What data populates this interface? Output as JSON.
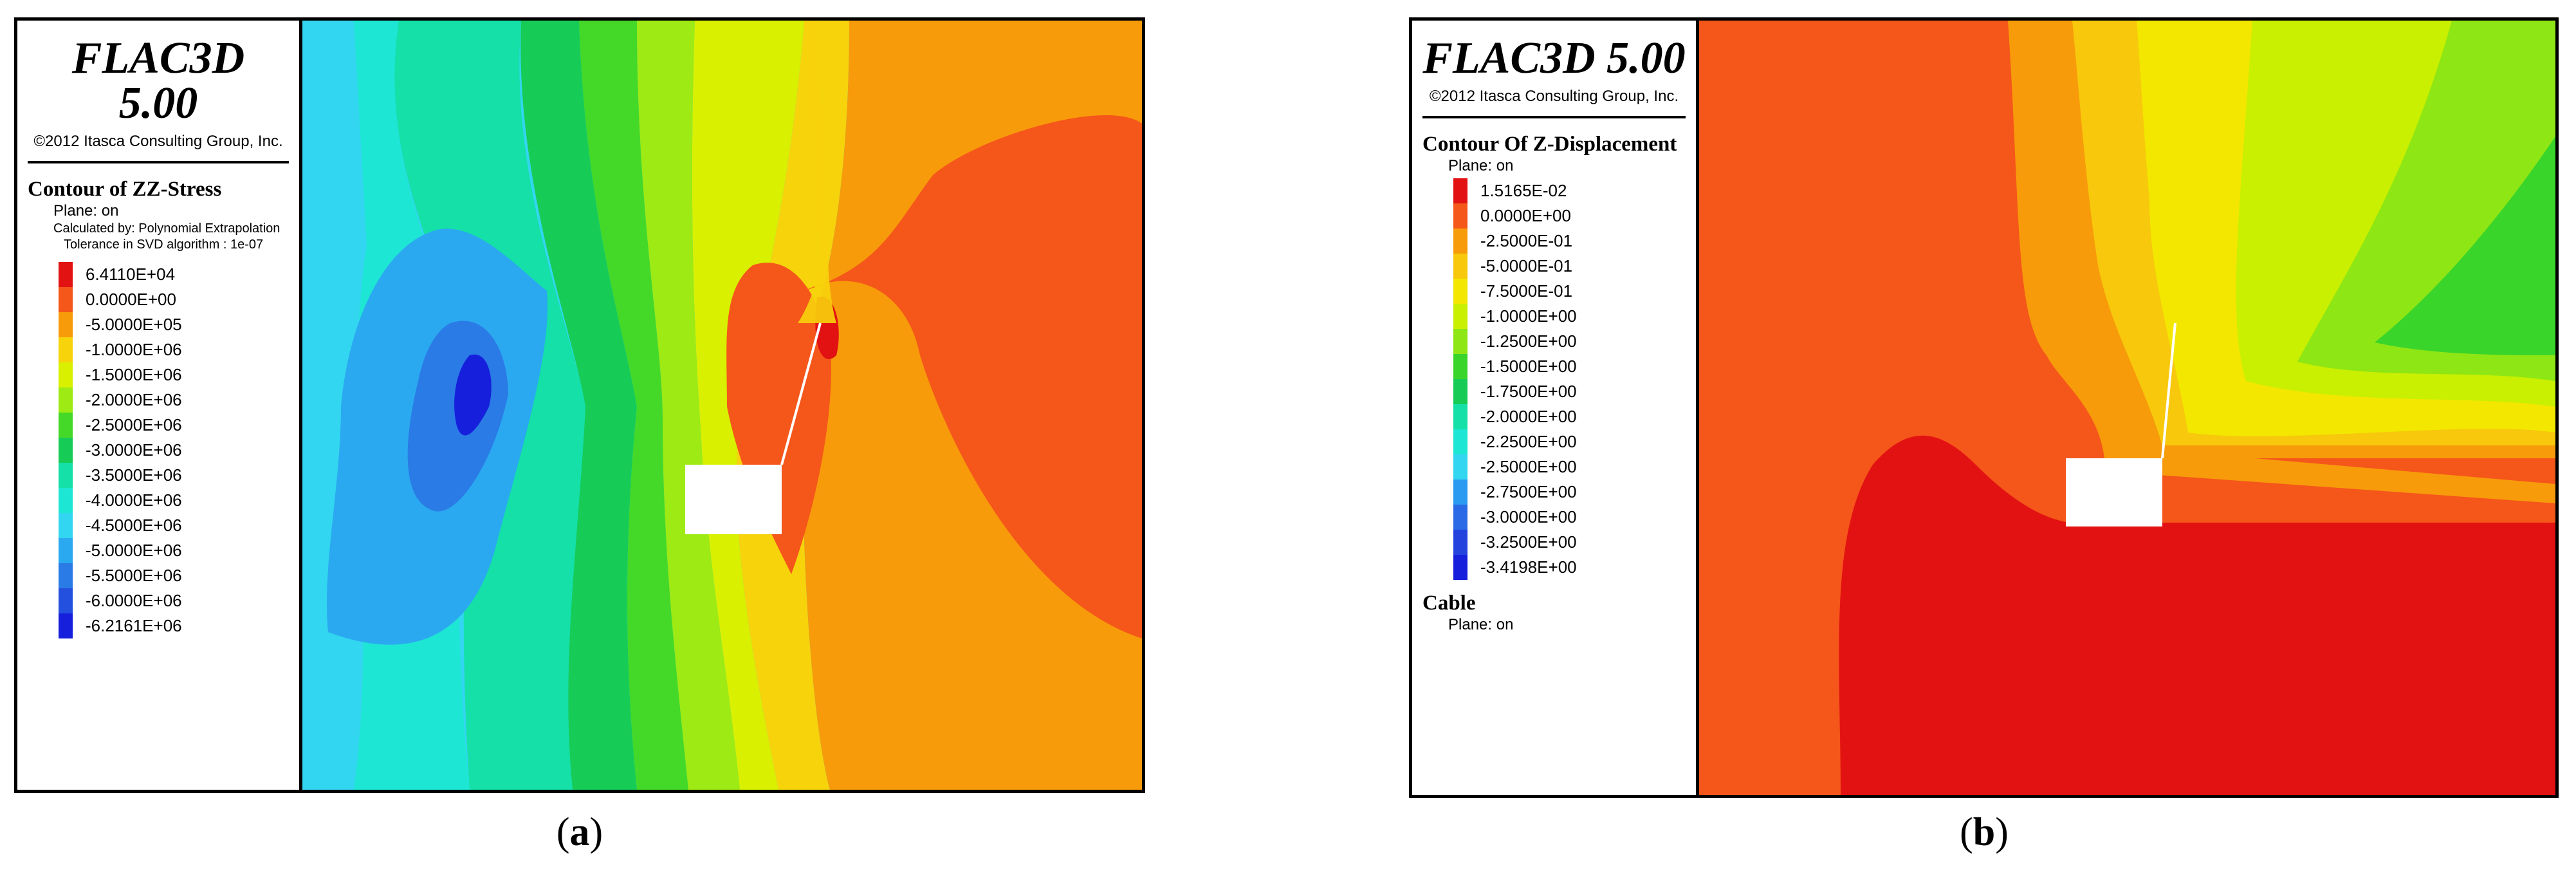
{
  "panels": [
    {
      "id": "a",
      "app_title": "FLAC3D 5.00",
      "copyright": "©2012 Itasca Consulting Group, Inc.",
      "contour_title": "Contour of ZZ-Stress",
      "notes": [
        "Plane: on",
        "Calculated by: Polynomial Extrapolation",
        "Tolerance in SVD algorithm : 1e-07"
      ],
      "scale": [
        {
          "label": "6.4110E+04",
          "color": "#e31212"
        },
        {
          "label": "0.0000E+00",
          "color": "#f5561a"
        },
        {
          "label": "-5.0000E+05",
          "color": "#f79b0a"
        },
        {
          "label": "-1.0000E+06",
          "color": "#f7d30c"
        },
        {
          "label": "-1.5000E+06",
          "color": "#d9f000"
        },
        {
          "label": "-2.0000E+06",
          "color": "#9dea14"
        },
        {
          "label": "-2.5000E+06",
          "color": "#44d828"
        },
        {
          "label": "-3.0000E+06",
          "color": "#16cc57"
        },
        {
          "label": "-3.5000E+06",
          "color": "#14e0a8"
        },
        {
          "label": "-4.0000E+06",
          "color": "#1ee6d4"
        },
        {
          "label": "-4.5000E+06",
          "color": "#33d6f0"
        },
        {
          "label": "-5.0000E+06",
          "color": "#2aa9f0"
        },
        {
          "label": "-5.5000E+06",
          "color": "#2a7be6"
        },
        {
          "label": "-6.0000E+06",
          "color": "#2350de"
        },
        {
          "label": "-6.2161E+06",
          "color": "#1620dc"
        }
      ],
      "caption": "a"
    },
    {
      "id": "b",
      "app_title": "FLAC3D 5.00",
      "copyright": "©2012 Itasca Consulting Group, Inc.",
      "contour_title": "Contour Of Z-Displacement",
      "notes": [
        "Plane: on"
      ],
      "scale": [
        {
          "label": "1.5165E-02",
          "color": "#e31212"
        },
        {
          "label": "0.0000E+00",
          "color": "#f5561a"
        },
        {
          "label": "-2.5000E-01",
          "color": "#f79b0a"
        },
        {
          "label": "-5.0000E-01",
          "color": "#f7c80c"
        },
        {
          "label": "-7.5000E-01",
          "color": "#f3e700"
        },
        {
          "label": "-1.0000E+00",
          "color": "#c8f000"
        },
        {
          "label": "-1.2500E+00",
          "color": "#8ee614"
        },
        {
          "label": "-1.5000E+00",
          "color": "#3ad52a"
        },
        {
          "label": "-1.7500E+00",
          "color": "#16cc57"
        },
        {
          "label": "-2.0000E+00",
          "color": "#14e0a8"
        },
        {
          "label": "-2.2500E+00",
          "color": "#1ee6d4"
        },
        {
          "label": "-2.5000E+00",
          "color": "#33d6f0"
        },
        {
          "label": "-2.7500E+00",
          "color": "#2a9bf0"
        },
        {
          "label": "-3.0000E+00",
          "color": "#2a6ae6"
        },
        {
          "label": "-3.2500E+00",
          "color": "#2342de"
        },
        {
          "label": "-3.4198E+00",
          "color": "#1620dc"
        }
      ],
      "extra_title": "Cable",
      "extra_notes": [
        "Plane: on"
      ],
      "caption": "b"
    }
  ],
  "caption_open": "(",
  "caption_close": ")"
}
